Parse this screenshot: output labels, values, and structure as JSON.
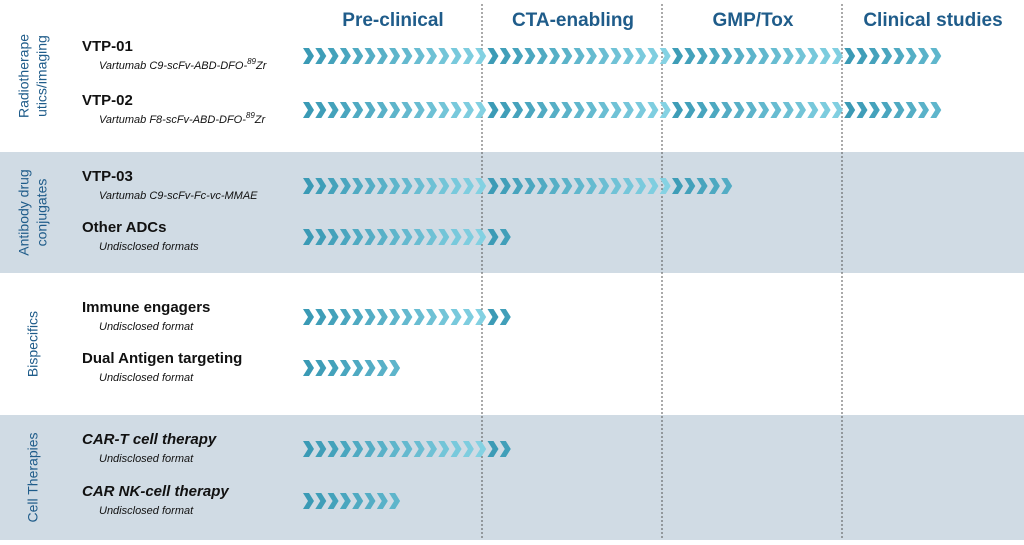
{
  "phases": [
    "Pre-clinical",
    "CTA-enabling",
    "GMP/Tox",
    "Clinical studies"
  ],
  "groups": [
    {
      "label": [
        "Radiotherape",
        "utics/imaging"
      ],
      "shaded": false,
      "programs": [
        {
          "name": "VTP-01",
          "subtitle": "Vartumab C9-scFv-ABD-DFO-",
          "subtitle_sup": "89",
          "subtitle_end": "Zr",
          "italic": false,
          "progress": 3.6
        },
        {
          "name": "VTP-02",
          "subtitle": "Vartumab F8-scFv-ABD-DFO-",
          "subtitle_sup": "89",
          "subtitle_end": "Zr",
          "italic": false,
          "progress": 3.6
        }
      ]
    },
    {
      "label": [
        "Antibody drug",
        "conjugates"
      ],
      "shaded": true,
      "programs": [
        {
          "name": "VTP-03",
          "subtitle": "Vartumab C9-scFv-Fc-vc-MMAE",
          "italic": false,
          "progress": 2.4
        },
        {
          "name": "Other ADCs",
          "subtitle": "Undisclosed formats",
          "italic": false,
          "progress": 1.2
        }
      ]
    },
    {
      "label": [
        "Bispecifics"
      ],
      "shaded": false,
      "programs": [
        {
          "name": "Immune engagers",
          "subtitle": "Undisclosed format",
          "italic": false,
          "progress": 1.2
        },
        {
          "name": "Dual Antigen targeting",
          "subtitle": "Undisclosed format",
          "italic": false,
          "progress": 0.6
        }
      ]
    },
    {
      "label": [
        "Cell Therapies"
      ],
      "shaded": true,
      "programs": [
        {
          "name": "CAR-T cell therapy",
          "subtitle": "Undisclosed format",
          "italic": true,
          "progress": 1.2
        },
        {
          "name": "CAR NK-cell therapy",
          "subtitle": "Undisclosed format",
          "italic": true,
          "progress": 0.6
        }
      ]
    }
  ]
}
